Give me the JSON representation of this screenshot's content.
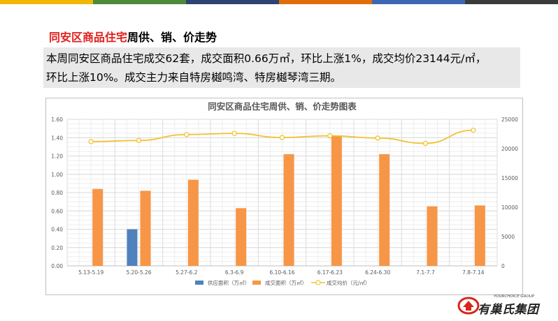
{
  "colors": {
    "topbar": [
      "#f2b705",
      "#4e8a3a",
      "#2e4372",
      "#e36c0a",
      "#3d67b0",
      "#3a3a3a"
    ],
    "supply": "#4f81bd",
    "deal": "#f79646",
    "price": "#f2c230",
    "title_red": "#e0201b"
  },
  "heading": {
    "red_part": "同安区商品住宅",
    "black_part": "周供、销、价走势"
  },
  "summary": {
    "line1": "本周同安区商品住宅成交62套，成交面积0.66万㎡，环比上涨1%，成交均价23144元/㎡，",
    "line2": "环比上涨10%。成交主力来自特房樾鸣湾、特房樾琴湾三期。"
  },
  "logo": {
    "sub": "YOURCHOICE GROUP",
    "name": "有巢氏集团"
  },
  "chart_data": {
    "type": "bar",
    "title": "同安区商品住宅周供、销、价走势图表",
    "categories": [
      "5.13-5.19",
      "5.20-5.26",
      "5.27-6.2",
      "6.3-6.9",
      "6.10-6.16",
      "6.17-6.23",
      "6.24-6.30",
      "7.1-7.7",
      "7.8-7.14"
    ],
    "series": [
      {
        "name": "供应面积（万㎡）",
        "kind": "bar",
        "axis": "left",
        "values": [
          0,
          0.4,
          0,
          0,
          0,
          0,
          0,
          0,
          0
        ]
      },
      {
        "name": "成交面积（万㎡）",
        "kind": "bar",
        "axis": "left",
        "values": [
          0.84,
          0.82,
          0.94,
          0.63,
          1.22,
          1.42,
          1.22,
          0.65,
          0.66
        ]
      },
      {
        "name": "成交均价（元/㎡）",
        "kind": "line",
        "axis": "right",
        "values": [
          21200,
          21400,
          22400,
          22600,
          21900,
          22200,
          21800,
          20900,
          23144
        ]
      }
    ],
    "y_left": {
      "min": 0,
      "max": 1.6,
      "ticks": [
        "0.00",
        "0.20",
        "0.40",
        "0.60",
        "0.80",
        "1.00",
        "1.20",
        "1.40",
        "1.60"
      ]
    },
    "y_right": {
      "min": 0,
      "max": 25000,
      "ticks": [
        "0",
        "5000",
        "10000",
        "15000",
        "20000",
        "25000"
      ]
    },
    "grid": true,
    "legend_position": "bottom"
  }
}
